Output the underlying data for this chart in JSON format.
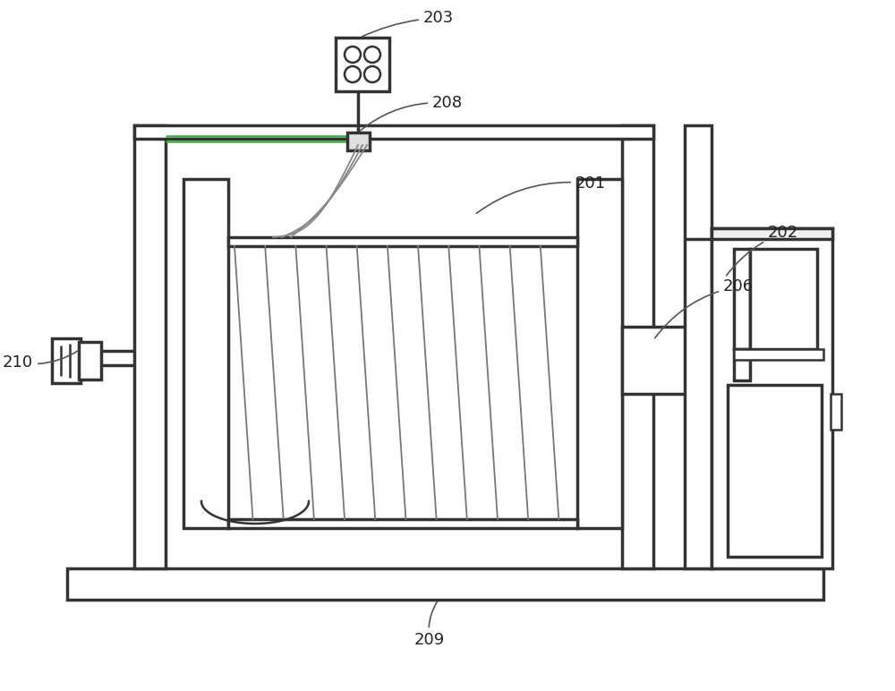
{
  "bg_color": "#ffffff",
  "lc": "#333333",
  "lw": 1.8,
  "lw2": 2.5
}
